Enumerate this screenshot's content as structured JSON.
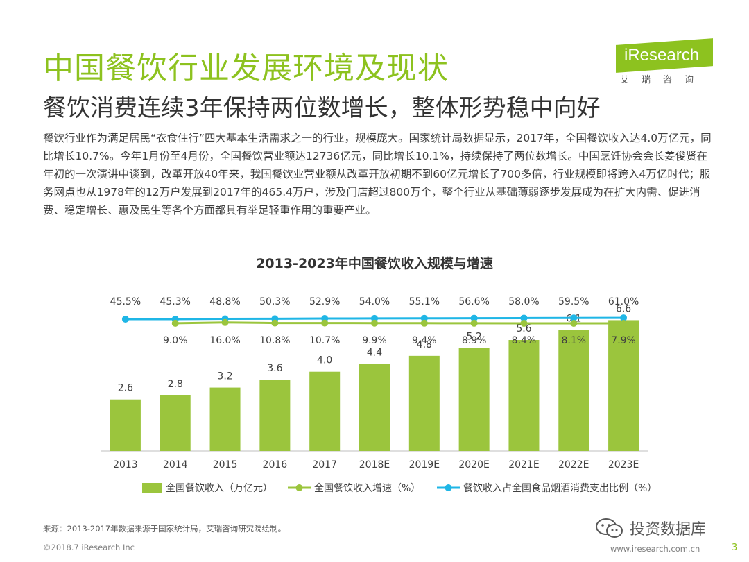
{
  "header": {
    "title": "中国餐饮行业发展环境及现状",
    "subtitle": "餐饮消费连续3年保持两位数增长，整体形势稳中向好",
    "logo_text": "iResearch",
    "logo_cn": "艾瑞咨询"
  },
  "body": {
    "text": "餐饮行业作为满足居民“衣食住行”四大基本生活需求之一的行业，规模庞大。国家统计局数据显示，2017年，全国餐饮收入达4.0万亿元，同比增长10.7%。今年1月份至4月份，全国餐饮营业额达12736亿元，同比增长10.1%，持续保持了两位数增长。中国烹饪协会会长姜俊贤在年初的一次演讲中谈到，改革开放40年来，我国餐饮业营业额从改革开放初期不到60亿元增长了700多倍，行业规模即将跨入4万亿时代；服务网点也从1978年的12万户发展到2017年的465.4万户，涉及门店超过800万个，整个行业从基础薄弱逐步发展成为在扩大内需、促进消费、稳定增长、惠及民生等各个方面都具有举足轻重作用的重要产业。"
  },
  "chart_data": {
    "type": "bar",
    "title": "2013-2023年中国餐饮收入规模与增速",
    "categories": [
      "2013",
      "2014",
      "2015",
      "2016",
      "2017",
      "2018E",
      "2019E",
      "2020E",
      "2021E",
      "2022E",
      "2023E"
    ],
    "series": [
      {
        "name": "全国餐饮收入（万亿元）",
        "type": "bar",
        "color": "#9bc53d",
        "values": [
          2.6,
          2.8,
          3.2,
          3.6,
          4.0,
          4.4,
          4.8,
          5.2,
          5.6,
          6.1,
          6.6
        ],
        "labels": [
          "2.6",
          "2.8",
          "3.2",
          "3.6",
          "4.0",
          "4.4",
          "4.8",
          "5.2",
          "5.6",
          "6.1",
          "6.6"
        ]
      },
      {
        "name": "全国餐饮收入增速（%）",
        "type": "line",
        "color": "#9bc53d",
        "values": [
          null,
          9.0,
          16.0,
          10.8,
          10.7,
          9.9,
          9.4,
          8.9,
          8.4,
          8.1,
          7.9
        ],
        "labels": [
          "",
          "9.0%",
          "16.0%",
          "10.8%",
          "10.7%",
          "9.9%",
          "9.4%",
          "8.9%",
          "8.4%",
          "8.1%",
          "7.9%"
        ]
      },
      {
        "name": "餐饮收入占全国食品烟酒消费支出比例（%）",
        "type": "line",
        "color": "#1fb6e6",
        "values": [
          45.5,
          45.3,
          48.8,
          50.3,
          52.9,
          54.0,
          55.1,
          56.6,
          58.0,
          59.5,
          61.0
        ],
        "labels": [
          "45.5%",
          "45.3%",
          "48.8%",
          "50.3%",
          "52.9%",
          "54.0%",
          "55.1%",
          "56.6%",
          "58.0%",
          "59.5%",
          "61.0%"
        ]
      }
    ],
    "ylim": [
      0,
      7
    ],
    "grid": false,
    "legend": "bottom"
  },
  "footer": {
    "source": "来源：2013-2017年数据来源于国家统计局，艾瑞咨询研究院绘制。",
    "copyright": "©2018.7 iResearch Inc",
    "website": "www.iresearch.com.cn",
    "page_number": "3",
    "watermark": "投资数据库"
  },
  "colors": {
    "brand": "#8dc21f",
    "bar": "#9bc53d",
    "share_line": "#1fb6e6"
  }
}
